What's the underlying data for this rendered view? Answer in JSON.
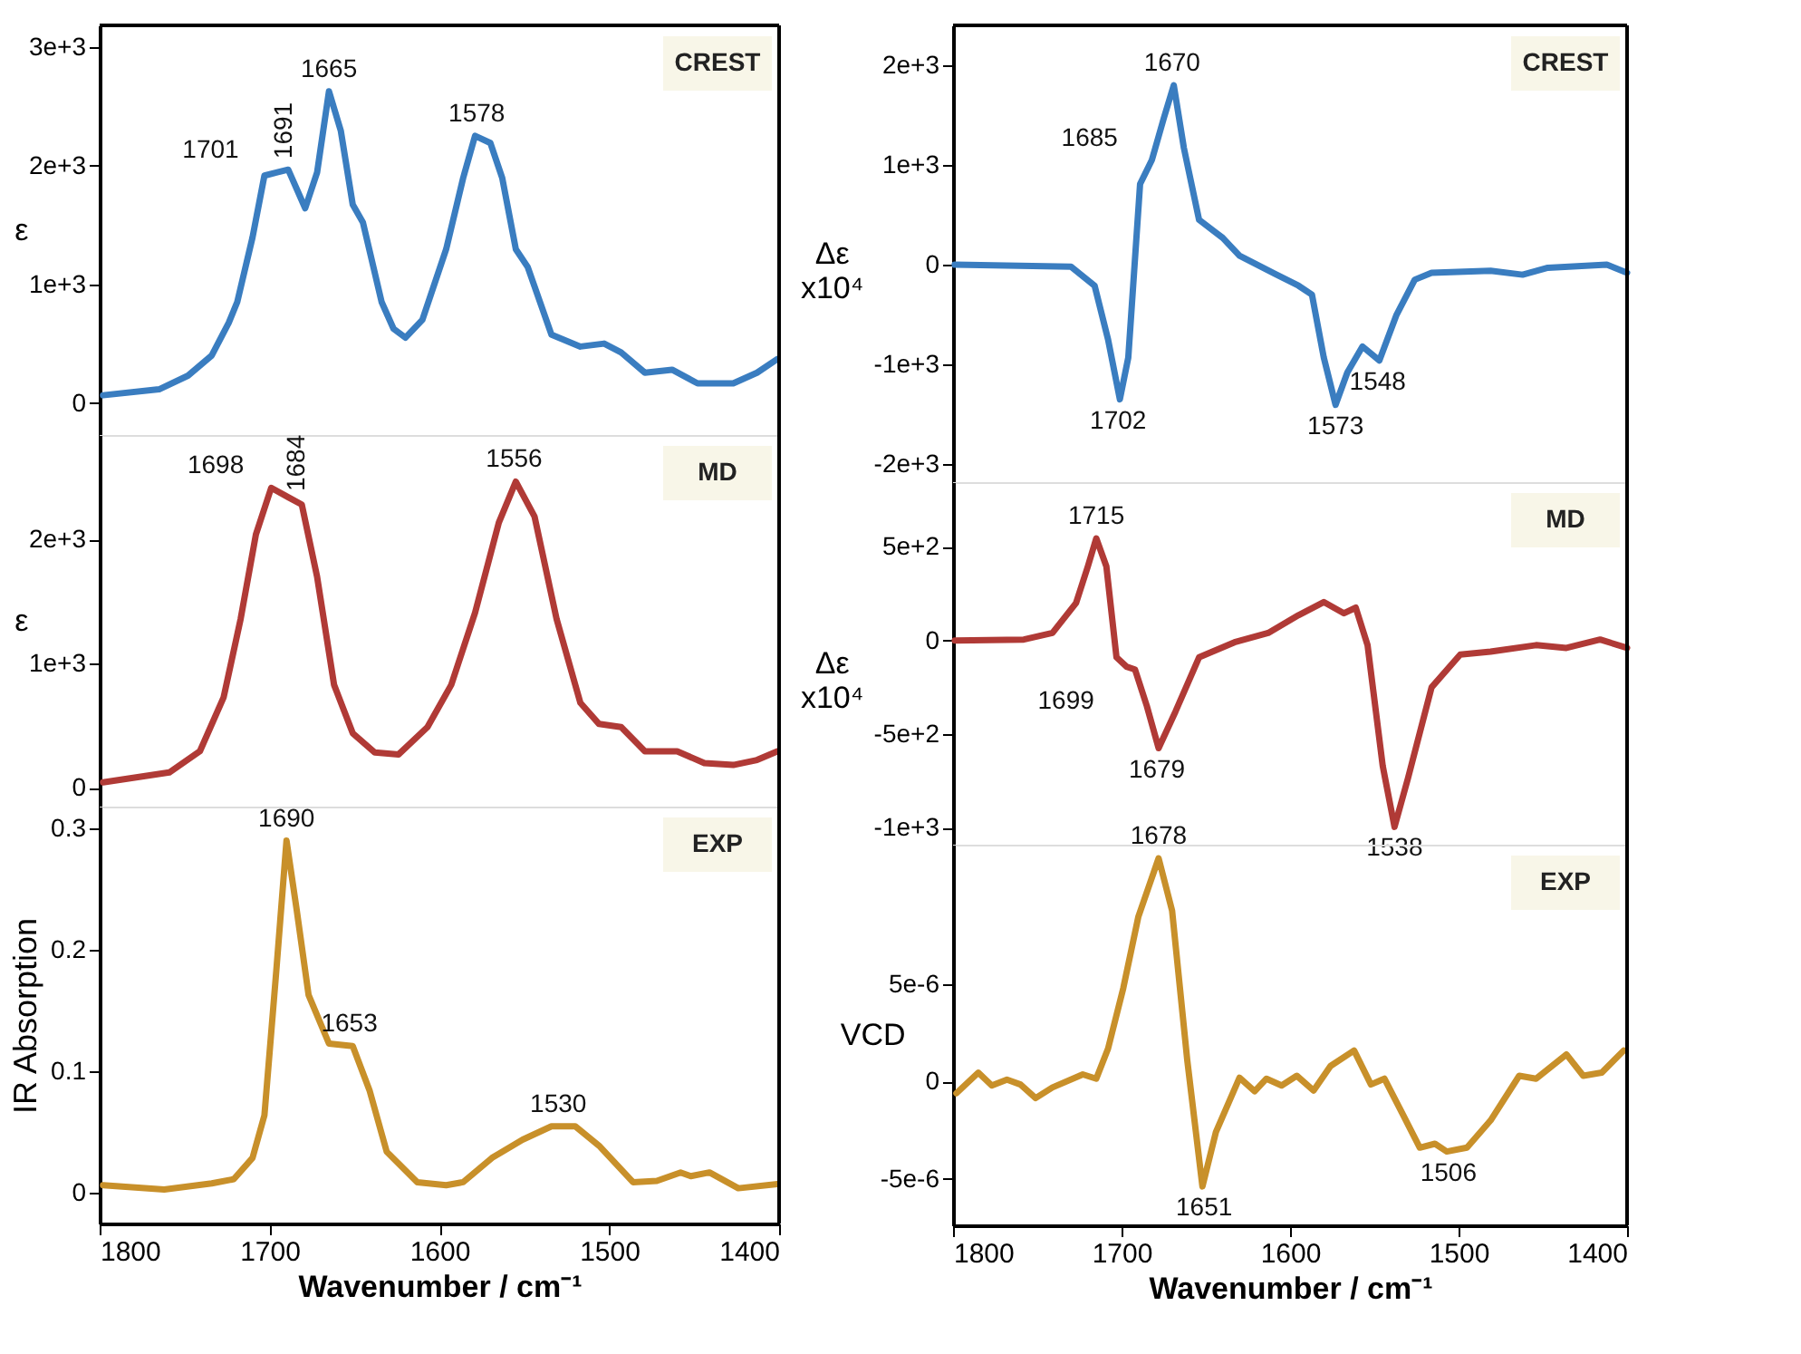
{
  "chart_data": [
    {
      "type": "line",
      "ylabel": "ε",
      "xlim": [
        1800,
        1400
      ],
      "xticks": [
        1800,
        1700,
        1600,
        1500,
        1400
      ],
      "ylim": [
        -270,
        3180
      ],
      "yticks": [
        {
          "value": 0,
          "label": "0"
        },
        {
          "value": 1000,
          "label": "1e+3"
        },
        {
          "value": 2000,
          "label": "2e+3"
        },
        {
          "value": 3000,
          "label": "3e+3"
        }
      ],
      "tick_labels": "y",
      "x": [
        1798,
        1765,
        1748,
        1734,
        1724,
        1719,
        1710,
        1703,
        1696,
        1689,
        1679,
        1672,
        1665,
        1658,
        1651,
        1645,
        1634,
        1627,
        1620,
        1610,
        1596,
        1586,
        1579,
        1570,
        1563,
        1555,
        1548,
        1534,
        1517,
        1503,
        1493,
        1479,
        1463,
        1448,
        1427,
        1413,
        1401
      ],
      "series": [
        {
          "color": "#3a7dc0",
          "values": [
            65,
            115,
            230,
            400,
            675,
            850,
            1395,
            1915,
            1940,
            1965,
            1640,
            1940,
            2625,
            2290,
            1670,
            1520,
            850,
            625,
            550,
            700,
            1295,
            1895,
            2250,
            2190,
            1895,
            1295,
            1145,
            575,
            475,
            500,
            425,
            255,
            280,
            165,
            165,
            255,
            370
          ]
        }
      ],
      "annotations": [
        "CREST",
        {
          "text": "1701",
          "x": 1701,
          "y": 1940
        },
        {
          "text": "1691",
          "x": 1691,
          "y": 1965
        },
        {
          "text": "1665",
          "x": 1665,
          "y": 2625
        },
        {
          "text": "1578",
          "x": 1578,
          "y": 2250
        }
      ]
    },
    {
      "type": "line",
      "ylabel": "Δε\nx10⁴",
      "xlim": [
        1800,
        1400
      ],
      "xticks": [
        1800,
        1700,
        1600,
        1500,
        1400
      ],
      "ylim": [
        -2180,
        2400
      ],
      "yticks": [
        {
          "value": -2000,
          "label": "-2e+3"
        },
        {
          "value": -1000,
          "label": "-1e+3"
        },
        {
          "value": 0,
          "label": "0"
        },
        {
          "value": 1000,
          "label": "1e+3"
        },
        {
          "value": 2000,
          "label": "2e+3"
        }
      ],
      "tick_labels": "y",
      "x": [
        1799,
        1730,
        1716,
        1708,
        1701,
        1696,
        1689,
        1682,
        1675,
        1669,
        1663,
        1654,
        1640,
        1630,
        1609,
        1595,
        1587,
        1580,
        1573,
        1566,
        1557,
        1547,
        1537,
        1526,
        1516,
        1481,
        1462,
        1447,
        1412,
        1400
      ],
      "series": [
        {
          "color": "#3a7dc0",
          "values": [
            0,
            -20,
            -210,
            -750,
            -1350,
            -930,
            810,
            1050,
            1465,
            1800,
            1170,
            450,
            270,
            90,
            -90,
            -210,
            -300,
            -930,
            -1405,
            -1080,
            -820,
            -960,
            -510,
            -150,
            -80,
            -60,
            -100,
            -30,
            0,
            -80
          ]
        }
      ],
      "annotations": [
        "CREST",
        {
          "text": "1685",
          "x": 1685,
          "y": 1050
        },
        {
          "text": "1670",
          "x": 1670,
          "y": 1800
        },
        {
          "text": "1702",
          "x": 1702,
          "y": -1350
        },
        {
          "text": "1573",
          "x": 1573,
          "y": -1405
        },
        {
          "text": "1548",
          "x": 1548,
          "y": -960
        }
      ]
    },
    {
      "type": "line",
      "ylabel": "ε",
      "xlim": [
        1800,
        1400
      ],
      "xticks": [
        1800,
        1700,
        1600,
        1500,
        1400
      ],
      "ylim": [
        -150,
        2840
      ],
      "yticks": [
        {
          "value": 0,
          "label": "0"
        },
        {
          "value": 1000,
          "label": "1e+3"
        },
        {
          "value": 2000,
          "label": "2e+3"
        }
      ],
      "tick_labels": "y",
      "x": [
        1798,
        1759,
        1741,
        1727,
        1717,
        1708,
        1699,
        1689,
        1681,
        1672,
        1662,
        1651,
        1638,
        1624,
        1607,
        1593,
        1579,
        1565,
        1555,
        1544,
        1531,
        1517,
        1506,
        1493,
        1479,
        1460,
        1444,
        1427,
        1413,
        1401
      ],
      "series": [
        {
          "color": "#b03a36",
          "values": [
            45,
            125,
            295,
            730,
            1360,
            2040,
            2415,
            2340,
            2280,
            1700,
            830,
            440,
            285,
            270,
            490,
            830,
            1410,
            2135,
            2465,
            2185,
            1360,
            685,
            515,
            490,
            295,
            295,
            200,
            185,
            225,
            295
          ]
        }
      ],
      "annotations": [
        "MD",
        {
          "text": "1698",
          "x": 1698,
          "y": 2415
        },
        {
          "text": "1684",
          "x": 1684,
          "y": 2300
        },
        {
          "text": "1556",
          "x": 1556,
          "y": 2465
        }
      ]
    },
    {
      "type": "line",
      "ylabel": "Δε\nx10⁴",
      "xlim": [
        1800,
        1400
      ],
      "xticks": [
        1800,
        1700,
        1600,
        1500,
        1400
      ],
      "ylim": [
        -1090,
        845
      ],
      "yticks": [
        {
          "value": -1000,
          "label": "-1e+3"
        },
        {
          "value": -500,
          "label": "-5e+2"
        },
        {
          "value": 0,
          "label": "0"
        },
        {
          "value": 500,
          "label": "5e+2"
        }
      ],
      "tick_labels": "y",
      "x": [
        1799,
        1758,
        1741,
        1727,
        1720,
        1715,
        1709,
        1703,
        1697,
        1692,
        1685,
        1678,
        1668,
        1654,
        1633,
        1613,
        1595,
        1580,
        1568,
        1561,
        1554,
        1545,
        1538,
        1530,
        1516,
        1499,
        1481,
        1454,
        1436,
        1416,
        1400
      ],
      "series": [
        {
          "color": "#b03a36",
          "values": [
            0,
            5,
            40,
            200,
            395,
            545,
            395,
            -90,
            -140,
            -155,
            -350,
            -575,
            -380,
            -90,
            -10,
            40,
            135,
            205,
            145,
            175,
            -25,
            -670,
            -995,
            -735,
            -250,
            -75,
            -60,
            -25,
            -40,
            5,
            -40
          ]
        }
      ],
      "annotations": [
        "MD",
        {
          "text": "1715",
          "x": 1715,
          "y": 545
        },
        {
          "text": "1699",
          "x": 1699,
          "y": -140
        },
        {
          "text": "1679",
          "x": 1679,
          "y": -575
        },
        {
          "text": "1538",
          "x": 1538,
          "y": -995
        }
      ]
    },
    {
      "type": "line",
      "ylabel": "IR Absorption",
      "xlabel": "Wavenumber / cm⁻¹",
      "xlim": [
        1800,
        1400
      ],
      "xticks": [
        1800,
        1700,
        1600,
        1500,
        1400
      ],
      "ylim": [
        -0.025,
        0.318
      ],
      "yticks": [
        0,
        0.1,
        0.2,
        0.3
      ],
      "x": [
        1798,
        1762,
        1734,
        1721,
        1710,
        1703,
        1696,
        1690,
        1684,
        1677,
        1665,
        1651,
        1641,
        1631,
        1613,
        1596,
        1586,
        1569,
        1551,
        1534,
        1520,
        1506,
        1486,
        1472,
        1458,
        1452,
        1441,
        1424,
        1401
      ],
      "series": [
        {
          "color": "#c8902a",
          "values": [
            0.0065,
            0.003,
            0.008,
            0.0115,
            0.029,
            0.064,
            0.183,
            0.29,
            0.233,
            0.163,
            0.123,
            0.121,
            0.084,
            0.034,
            0.009,
            0.0065,
            0.009,
            0.029,
            0.044,
            0.055,
            0.055,
            0.039,
            0.009,
            0.01,
            0.017,
            0.014,
            0.017,
            0.004,
            0.0075
          ]
        }
      ],
      "annotations": [
        "EXP",
        {
          "text": "1690",
          "x": 1690,
          "y": 0.29
        },
        {
          "text": "1653",
          "x": 1653,
          "y": 0.121
        },
        {
          "text": "1530",
          "x": 1530,
          "y": 0.055
        }
      ]
    },
    {
      "type": "line",
      "ylabel": "VCD",
      "xlabel": "Wavenumber / cm⁻¹",
      "xlim": [
        1800,
        1400
      ],
      "xticks": [
        1800,
        1700,
        1600,
        1500,
        1400
      ],
      "ylim": [
        -7.4e-06,
        1.22e-05
      ],
      "yticks": [
        {
          "value": -5e-06,
          "label": "-5e-6"
        },
        {
          "value": 0,
          "label": "0"
        },
        {
          "value": 5e-06,
          "label": "5e-6"
        }
      ],
      "x": [
        1798,
        1785,
        1777,
        1768,
        1760,
        1751,
        1741,
        1723,
        1715,
        1708,
        1699,
        1690,
        1678,
        1670,
        1661,
        1652,
        1644,
        1630,
        1621,
        1614,
        1605,
        1596,
        1586,
        1576,
        1562,
        1552,
        1544,
        1533,
        1523,
        1514,
        1507,
        1495,
        1481,
        1464,
        1454,
        1436,
        1426,
        1415,
        1402
      ],
      "series": [
        {
          "color": "#c8902a",
          "values": [
            -6e-07,
            4.6e-07,
            -2e-07,
            1e-07,
            -1.5e-07,
            -8.5e-07,
            -3e-07,
            3.7e-07,
            1.5e-07,
            1.7e-06,
            4.8e-06,
            8.5e-06,
            1.15e-05,
            8.8e-06,
            1.1e-06,
            -5.4e-06,
            -2.6e-06,
            2e-07,
            -5e-07,
            1.5e-07,
            -2e-07,
            3e-07,
            -4.6e-07,
            8e-07,
            1.6e-06,
            -1.5e-07,
            1.5e-07,
            -1.7e-06,
            -3.4e-06,
            -3.2e-06,
            -3.6e-06,
            -3.4e-06,
            -2e-06,
            3e-07,
            1.5e-07,
            1.4e-06,
            3e-07,
            4.6e-07,
            1.6e-06
          ]
        }
      ],
      "annotations": [
        "EXP",
        {
          "text": "1678",
          "x": 1678,
          "y": 1.15e-05
        },
        {
          "text": "1651",
          "x": 1651,
          "y": -5.4e-06
        },
        {
          "text": "1506",
          "x": 1506,
          "y": -3.6e-06
        }
      ]
    }
  ]
}
